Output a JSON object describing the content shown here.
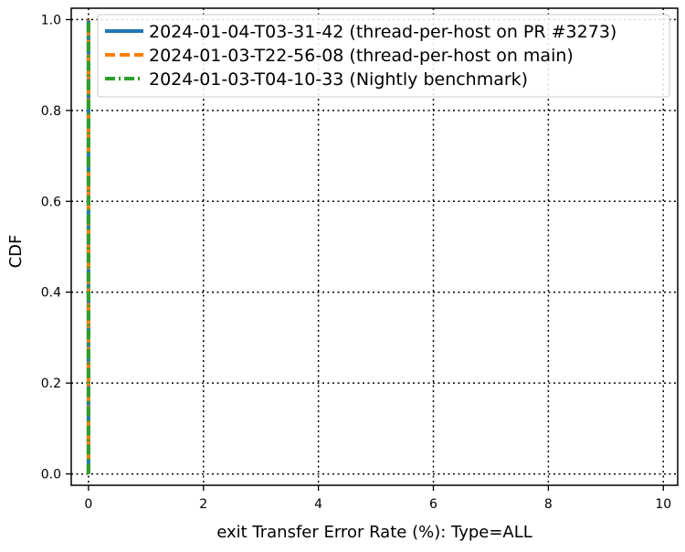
{
  "chart_data": {
    "type": "line",
    "title": "",
    "xlabel": "exit Transfer Error Rate (%): Type=ALL",
    "ylabel": "CDF",
    "xlim": [
      -0.3,
      10.25
    ],
    "ylim": [
      -0.025,
      1.025
    ],
    "xticks": [
      0,
      2,
      4,
      6,
      8,
      10
    ],
    "yticks": [
      0.0,
      0.2,
      0.4,
      0.6,
      0.8,
      1.0
    ],
    "xtick_labels": [
      "0",
      "2",
      "4",
      "6",
      "8",
      "10"
    ],
    "ytick_labels": [
      "0.0",
      "0.2",
      "0.4",
      "0.6",
      "0.8",
      "1.0"
    ],
    "grid": true,
    "legend_position": "top-right",
    "series": [
      {
        "name": "2024-01-04-T03-31-42 (thread-per-host on PR #3273)",
        "color": "#1f77b4",
        "style": "solid",
        "x": [
          0,
          0
        ],
        "y": [
          0.0,
          1.0
        ]
      },
      {
        "name": "2024-01-03-T22-56-08 (thread-per-host on main)",
        "color": "#ff7f0e",
        "style": "dashed",
        "x": [
          0,
          0
        ],
        "y": [
          0.0,
          1.0
        ]
      },
      {
        "name": "2024-01-03-T04-10-33 (Nightly benchmark)",
        "color": "#2ca02c",
        "style": "dashdot",
        "x": [
          0,
          0
        ],
        "y": [
          0.0,
          1.0
        ]
      }
    ]
  }
}
